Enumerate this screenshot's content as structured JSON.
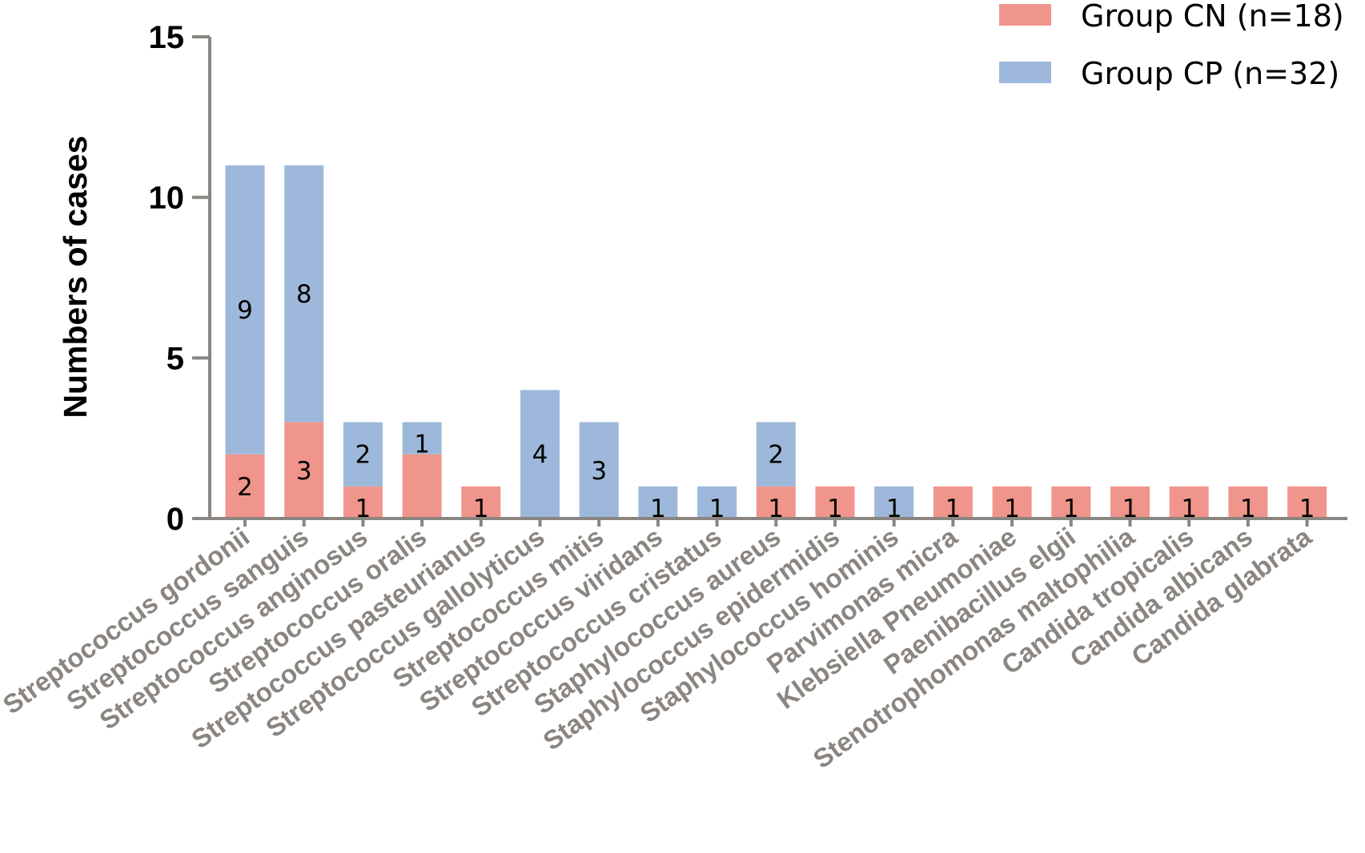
{
  "chart_data": {
    "type": "bar",
    "stacked": true,
    "title": "",
    "xlabel": "",
    "ylabel": "Numbers of cases",
    "ylim": [
      0,
      15
    ],
    "yticks": [
      0,
      5,
      10,
      15
    ],
    "legend_position": "top-right",
    "grid": false,
    "categories": [
      "Streptococcus gordonii",
      "Streptococcus sanguis",
      "Streptococcus anginosus",
      "Streptococcus oralis",
      "Streptococcus pasteurianus",
      "Streptococcus gallolyticus",
      "Streptococcus mitis",
      "Streptococcus viridans",
      "Streptococcus cristatus",
      "Staphylococcus aureus",
      "Staphylococcus epidermidis",
      "Staphylococcus hominis",
      "Parvimonas micra",
      "Klebsiella Pneumoniae",
      "Paenibacillus elgii",
      "Stenotrophomonas maltophilia",
      "Candida tropicalis",
      "Candida albicans",
      "Candida glabrata"
    ],
    "series": [
      {
        "name": "Group CN (n=18)",
        "color": "#f0958c",
        "values": [
          2,
          3,
          1,
          2,
          1,
          0,
          0,
          0,
          0,
          1,
          1,
          0,
          1,
          1,
          1,
          1,
          1,
          1,
          1
        ],
        "labels": [
          "2",
          "3",
          "1",
          "",
          "1",
          "",
          "",
          "",
          "",
          "1",
          "1",
          "",
          "1",
          "1",
          "1",
          "1",
          "1",
          "1",
          "1"
        ]
      },
      {
        "name": "Group CP (n=32)",
        "color": "#9db8da",
        "values": [
          9,
          8,
          2,
          1,
          0,
          4,
          3,
          1,
          1,
          2,
          0,
          1,
          0,
          0,
          0,
          0,
          0,
          0,
          0
        ],
        "labels": [
          "9",
          "8",
          "2",
          "1",
          "",
          "4",
          "3",
          "1",
          "1",
          "2",
          "",
          "1",
          "",
          "",
          "",
          "",
          "",
          "",
          ""
        ]
      }
    ],
    "axis_color": "#8a8580"
  }
}
